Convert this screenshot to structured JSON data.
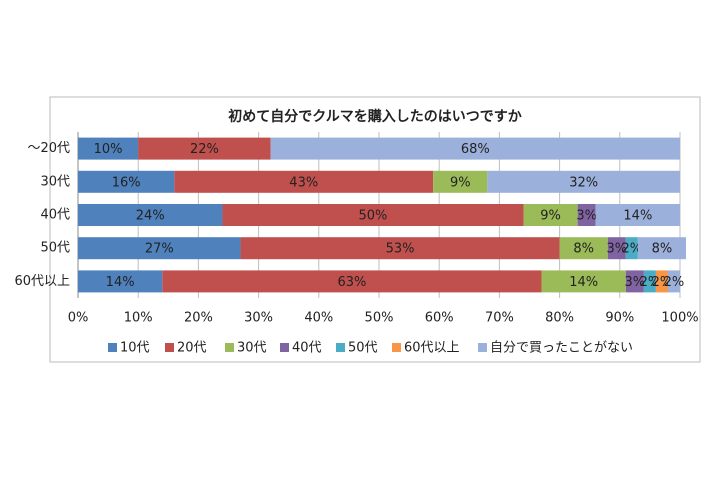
{
  "chart_data": {
    "type": "stacked-bar-horizontal",
    "title": "初めて自分でクルマを購入したのはいつですか",
    "categories": [
      "～20代",
      "30代",
      "40代",
      "50代",
      "60代以上"
    ],
    "series": [
      {
        "name": "10代",
        "color": "#4f81bd",
        "values": [
          10,
          16,
          24,
          27,
          14
        ],
        "value_labels": [
          "10%",
          "16%",
          "24%",
          "27%",
          "14%"
        ]
      },
      {
        "name": "20代",
        "color": "#c0504d",
        "values": [
          22,
          43,
          50,
          53,
          63
        ],
        "value_labels": [
          "22%",
          "43%",
          "50%",
          "53%",
          "63%"
        ]
      },
      {
        "name": "30代",
        "color": "#9bbb59",
        "values": [
          0,
          9,
          9,
          8,
          14
        ],
        "value_labels": [
          null,
          "9%",
          "9%",
          "8%",
          "14%"
        ]
      },
      {
        "name": "40代",
        "color": "#8064a2",
        "values": [
          0,
          0,
          3,
          3,
          3
        ],
        "value_labels": [
          null,
          null,
          "3%",
          "3%",
          "3%"
        ]
      },
      {
        "name": "50代",
        "color": "#4bacc6",
        "values": [
          0,
          0,
          0,
          2,
          2
        ],
        "value_labels": [
          null,
          null,
          null,
          "2%",
          "2%"
        ]
      },
      {
        "name": "60代以上",
        "color": "#f79646",
        "values": [
          0,
          0,
          0,
          0,
          2
        ],
        "value_labels": [
          null,
          null,
          null,
          null,
          "2%"
        ]
      },
      {
        "name": "自分で買ったことがない",
        "color": "#9bb1dc",
        "values": [
          68,
          32,
          14,
          8,
          2
        ],
        "value_labels": [
          "68%",
          "32%",
          "14%",
          "8%",
          "2%"
        ]
      }
    ],
    "xlim": [
      0,
      100
    ],
    "xticks": [
      {
        "value": 0,
        "label": "0%"
      },
      {
        "value": 10,
        "label": "10%"
      },
      {
        "value": 20,
        "label": "20%"
      },
      {
        "value": 30,
        "label": "30%"
      },
      {
        "value": 40,
        "label": "40%"
      },
      {
        "value": 50,
        "label": "50%"
      },
      {
        "value": 60,
        "label": "60%"
      },
      {
        "value": 70,
        "label": "70%"
      },
      {
        "value": 80,
        "label": "80%"
      },
      {
        "value": 90,
        "label": "90%"
      },
      {
        "value": 100,
        "label": "100%"
      }
    ],
    "grid": true,
    "legend": "bottom"
  }
}
